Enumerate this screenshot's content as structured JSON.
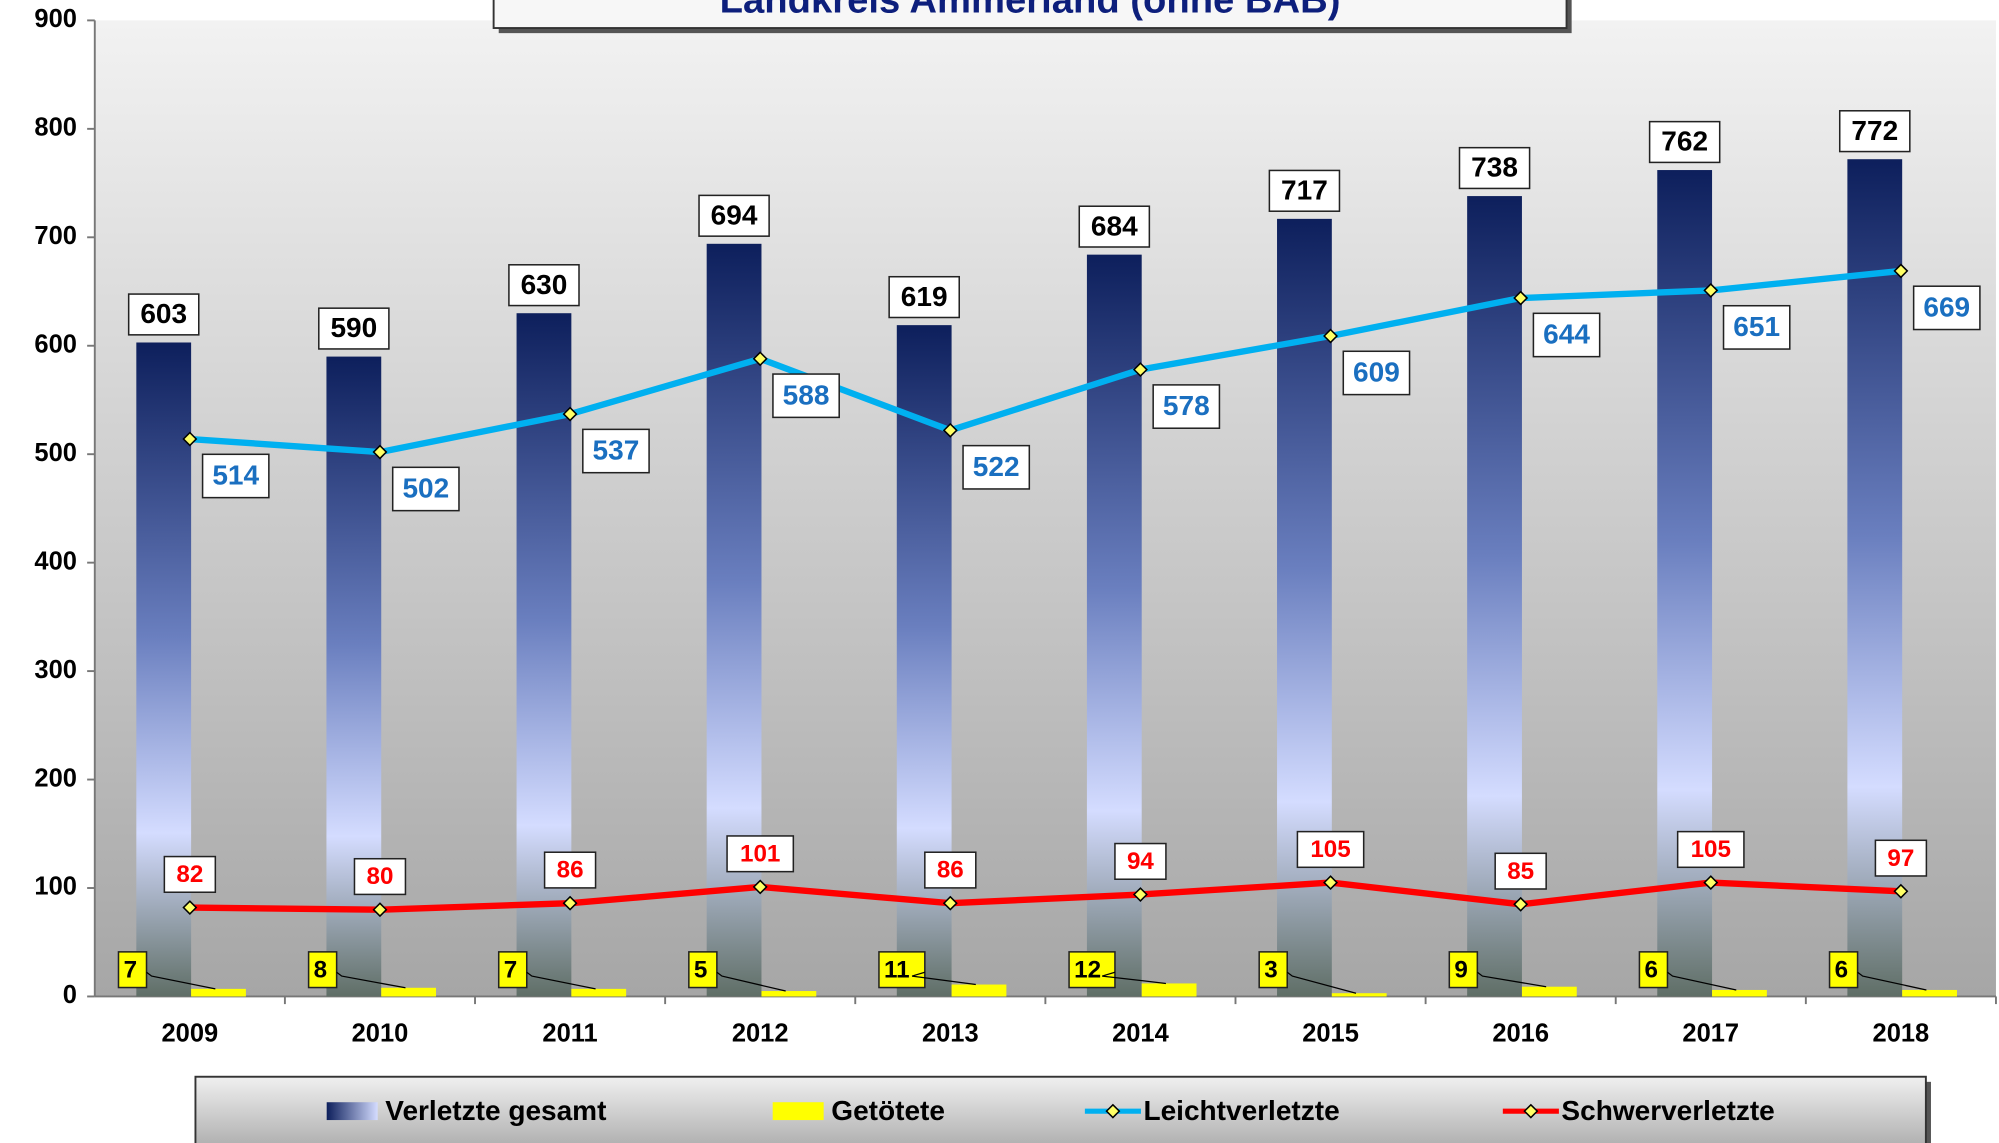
{
  "chart_data": {
    "type": "bar-line",
    "title": "Landkreis Ammerland (ohne BAB)",
    "categories": [
      "2009",
      "2010",
      "2011",
      "2012",
      "2013",
      "2014",
      "2015",
      "2016",
      "2017",
      "2018"
    ],
    "series": [
      {
        "name": "Verletzte gesamt",
        "type": "bar",
        "color": "#0d1f5c",
        "values": [
          603,
          590,
          630,
          694,
          619,
          684,
          717,
          738,
          762,
          772
        ]
      },
      {
        "name": "Getötete",
        "type": "bar",
        "color": "#ffff00",
        "values": [
          7,
          8,
          7,
          5,
          11,
          12,
          3,
          9,
          6,
          6
        ]
      },
      {
        "name": "Leichtverletzte",
        "type": "line",
        "color": "#00b0f0",
        "values": [
          514,
          502,
          537,
          588,
          522,
          578,
          609,
          644,
          651,
          669
        ]
      },
      {
        "name": "Schwerverletzte",
        "type": "line",
        "color": "#ff0000",
        "values": [
          82,
          80,
          86,
          101,
          86,
          94,
          105,
          85,
          105,
          97
        ]
      }
    ],
    "ylim": [
      0,
      900
    ],
    "yticks": [
      0,
      100,
      200,
      300,
      400,
      500,
      600,
      700,
      800,
      900
    ],
    "legend": "bottom"
  }
}
